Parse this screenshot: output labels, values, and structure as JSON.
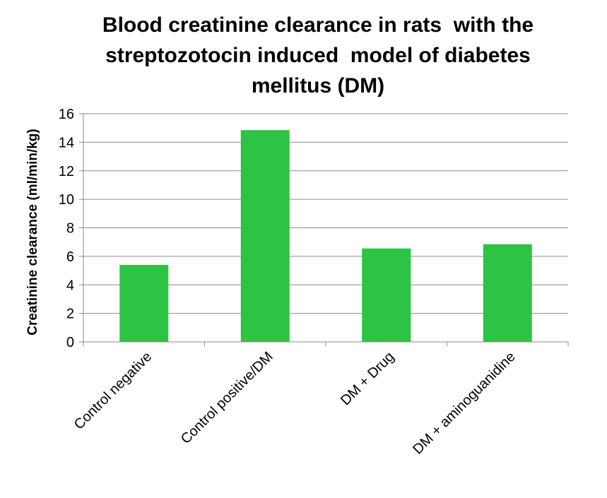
{
  "chart_data": {
    "type": "bar",
    "title_lines": [
      "Blood creatinine clearance in rats  with the",
      "streptozotocin induced  model of diabetes",
      "mellitus (DM)"
    ],
    "xlabel": "",
    "ylabel": "Creatinine clearance (ml/min/kg)",
    "categories": [
      "Control negative",
      "Control positive/DM",
      "DM + Drug",
      "DM + aminoguanidine"
    ],
    "values": [
      5.4,
      14.85,
      6.55,
      6.85
    ],
    "ylim": [
      0,
      16
    ],
    "yticks": [
      0,
      2,
      4,
      6,
      8,
      10,
      12,
      14,
      16
    ],
    "grid": true,
    "legend": "none",
    "colors": {
      "bar": "#2dc344",
      "grid": "#8c8c8c",
      "axis": "#8c8c8c",
      "text": "#000000"
    }
  }
}
